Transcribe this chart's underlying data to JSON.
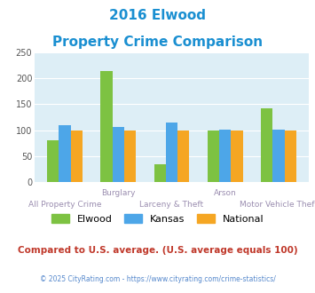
{
  "title_line1": "2016 Elwood",
  "title_line2": "Property Crime Comparison",
  "x_labels_top": [
    "",
    "Burglary",
    "",
    "Arson",
    ""
  ],
  "x_labels_bottom": [
    "All Property Crime",
    "",
    "Larceny & Theft",
    "",
    "Motor Vehicle Theft"
  ],
  "elwood": [
    80,
    215,
    33,
    100,
    143
  ],
  "kansas": [
    110,
    106,
    114,
    101,
    101
  ],
  "national": [
    100,
    100,
    100,
    100,
    100
  ],
  "elwood_color": "#7dc242",
  "kansas_color": "#4da6e8",
  "national_color": "#f5a623",
  "ylim": [
    0,
    250
  ],
  "yticks": [
    0,
    50,
    100,
    150,
    200,
    250
  ],
  "bg_color": "#ddeef6",
  "title_color": "#1a8fd1",
  "label_color": "#9b8eb0",
  "footer_text": "Compared to U.S. average. (U.S. average equals 100)",
  "footer_color": "#c0392b",
  "copyright_text": "© 2025 CityRating.com - https://www.cityrating.com/crime-statistics/",
  "copyright_color": "#5588cc"
}
